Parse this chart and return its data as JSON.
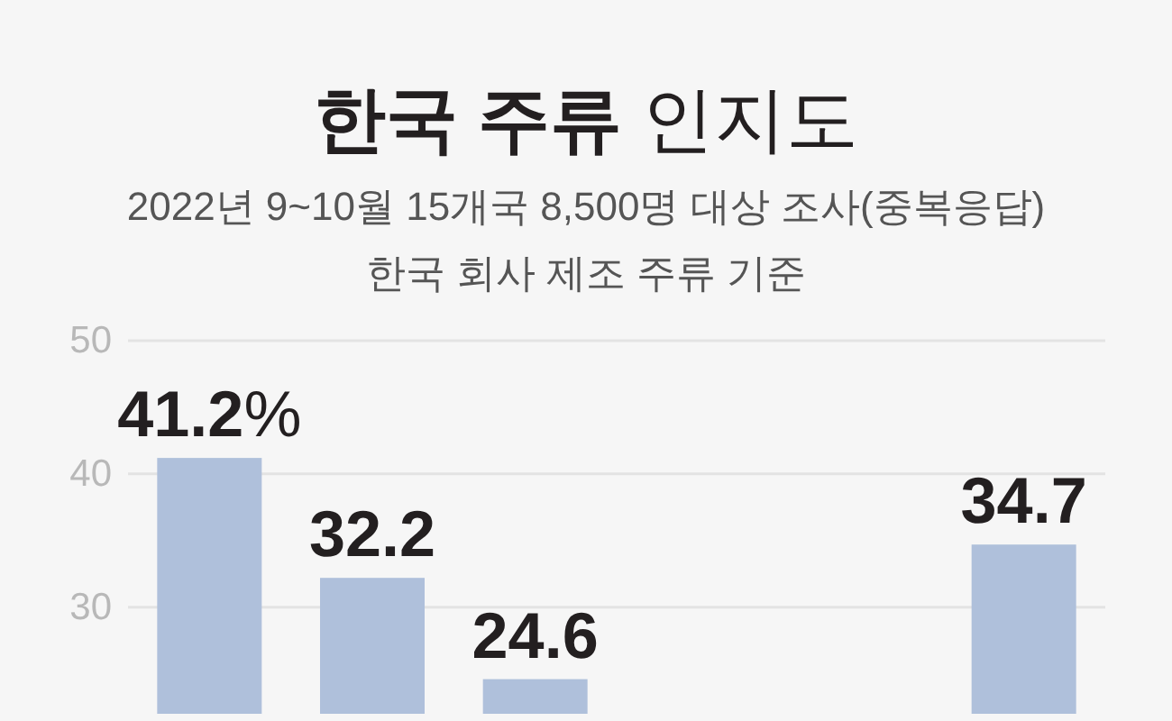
{
  "chart_data": {
    "type": "bar",
    "title": "한국 주류 인지도",
    "subtitle": "2022년 9~10월 15개국 8,500명 대상 조사(중복응답)",
    "annotations": [
      "한국 회사 제조 주류 기준"
    ],
    "categories": [
      null,
      null,
      null,
      null,
      null,
      null
    ],
    "values": [
      41.2,
      32.2,
      24.6,
      null,
      null,
      34.7
    ],
    "value_labels": [
      "41.2%",
      "32.2",
      "24.6",
      null,
      null,
      "34.7"
    ],
    "color": "#afc0db",
    "ylim": [
      22,
      50
    ],
    "yticks": [
      30,
      40,
      50
    ],
    "grid": "y"
  }
}
